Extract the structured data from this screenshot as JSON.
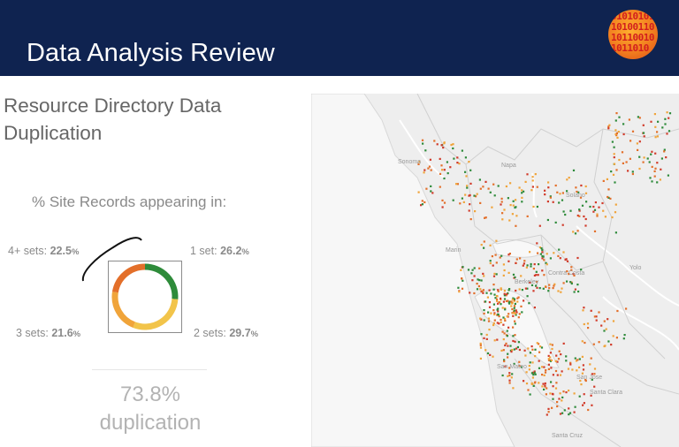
{
  "header": {
    "title": "Data Analysis Review",
    "logo_icon": "binary-globe-icon",
    "background_color": "#0f2350"
  },
  "section": {
    "title": "Resource Directory Data Duplication"
  },
  "donut": {
    "subtitle": "% Site Records appearing in:",
    "segments": [
      {
        "label_prefix": "1 set:",
        "value": "26.2",
        "unit": "%",
        "color": "#2e8b3a",
        "share": 26.2
      },
      {
        "label_prefix": "2 sets:",
        "value": "29.7",
        "unit": "%",
        "color": "#f2c44a",
        "share": 29.7
      },
      {
        "label_prefix": "3 sets:",
        "value": "21.6",
        "unit": "%",
        "color": "#f0a43a",
        "share": 21.6
      },
      {
        "label_prefix": "4+ sets:",
        "value": "22.5",
        "unit": "%",
        "color": "#e36f2a",
        "share": 22.5
      }
    ]
  },
  "summary": {
    "value": "73.8%",
    "caption": "duplication"
  },
  "map": {
    "labels": [
      "Sonoma",
      "Napa",
      "Marin",
      "Berkeley",
      "Contra Costa",
      "San Jose",
      "Santa Clara",
      "San Mateo",
      "Santa Cruz",
      "Solano",
      "Yolo"
    ],
    "point_colors": [
      "#2e8b3a",
      "#f0a43a",
      "#e36f2a",
      "#d13a2a"
    ]
  }
}
